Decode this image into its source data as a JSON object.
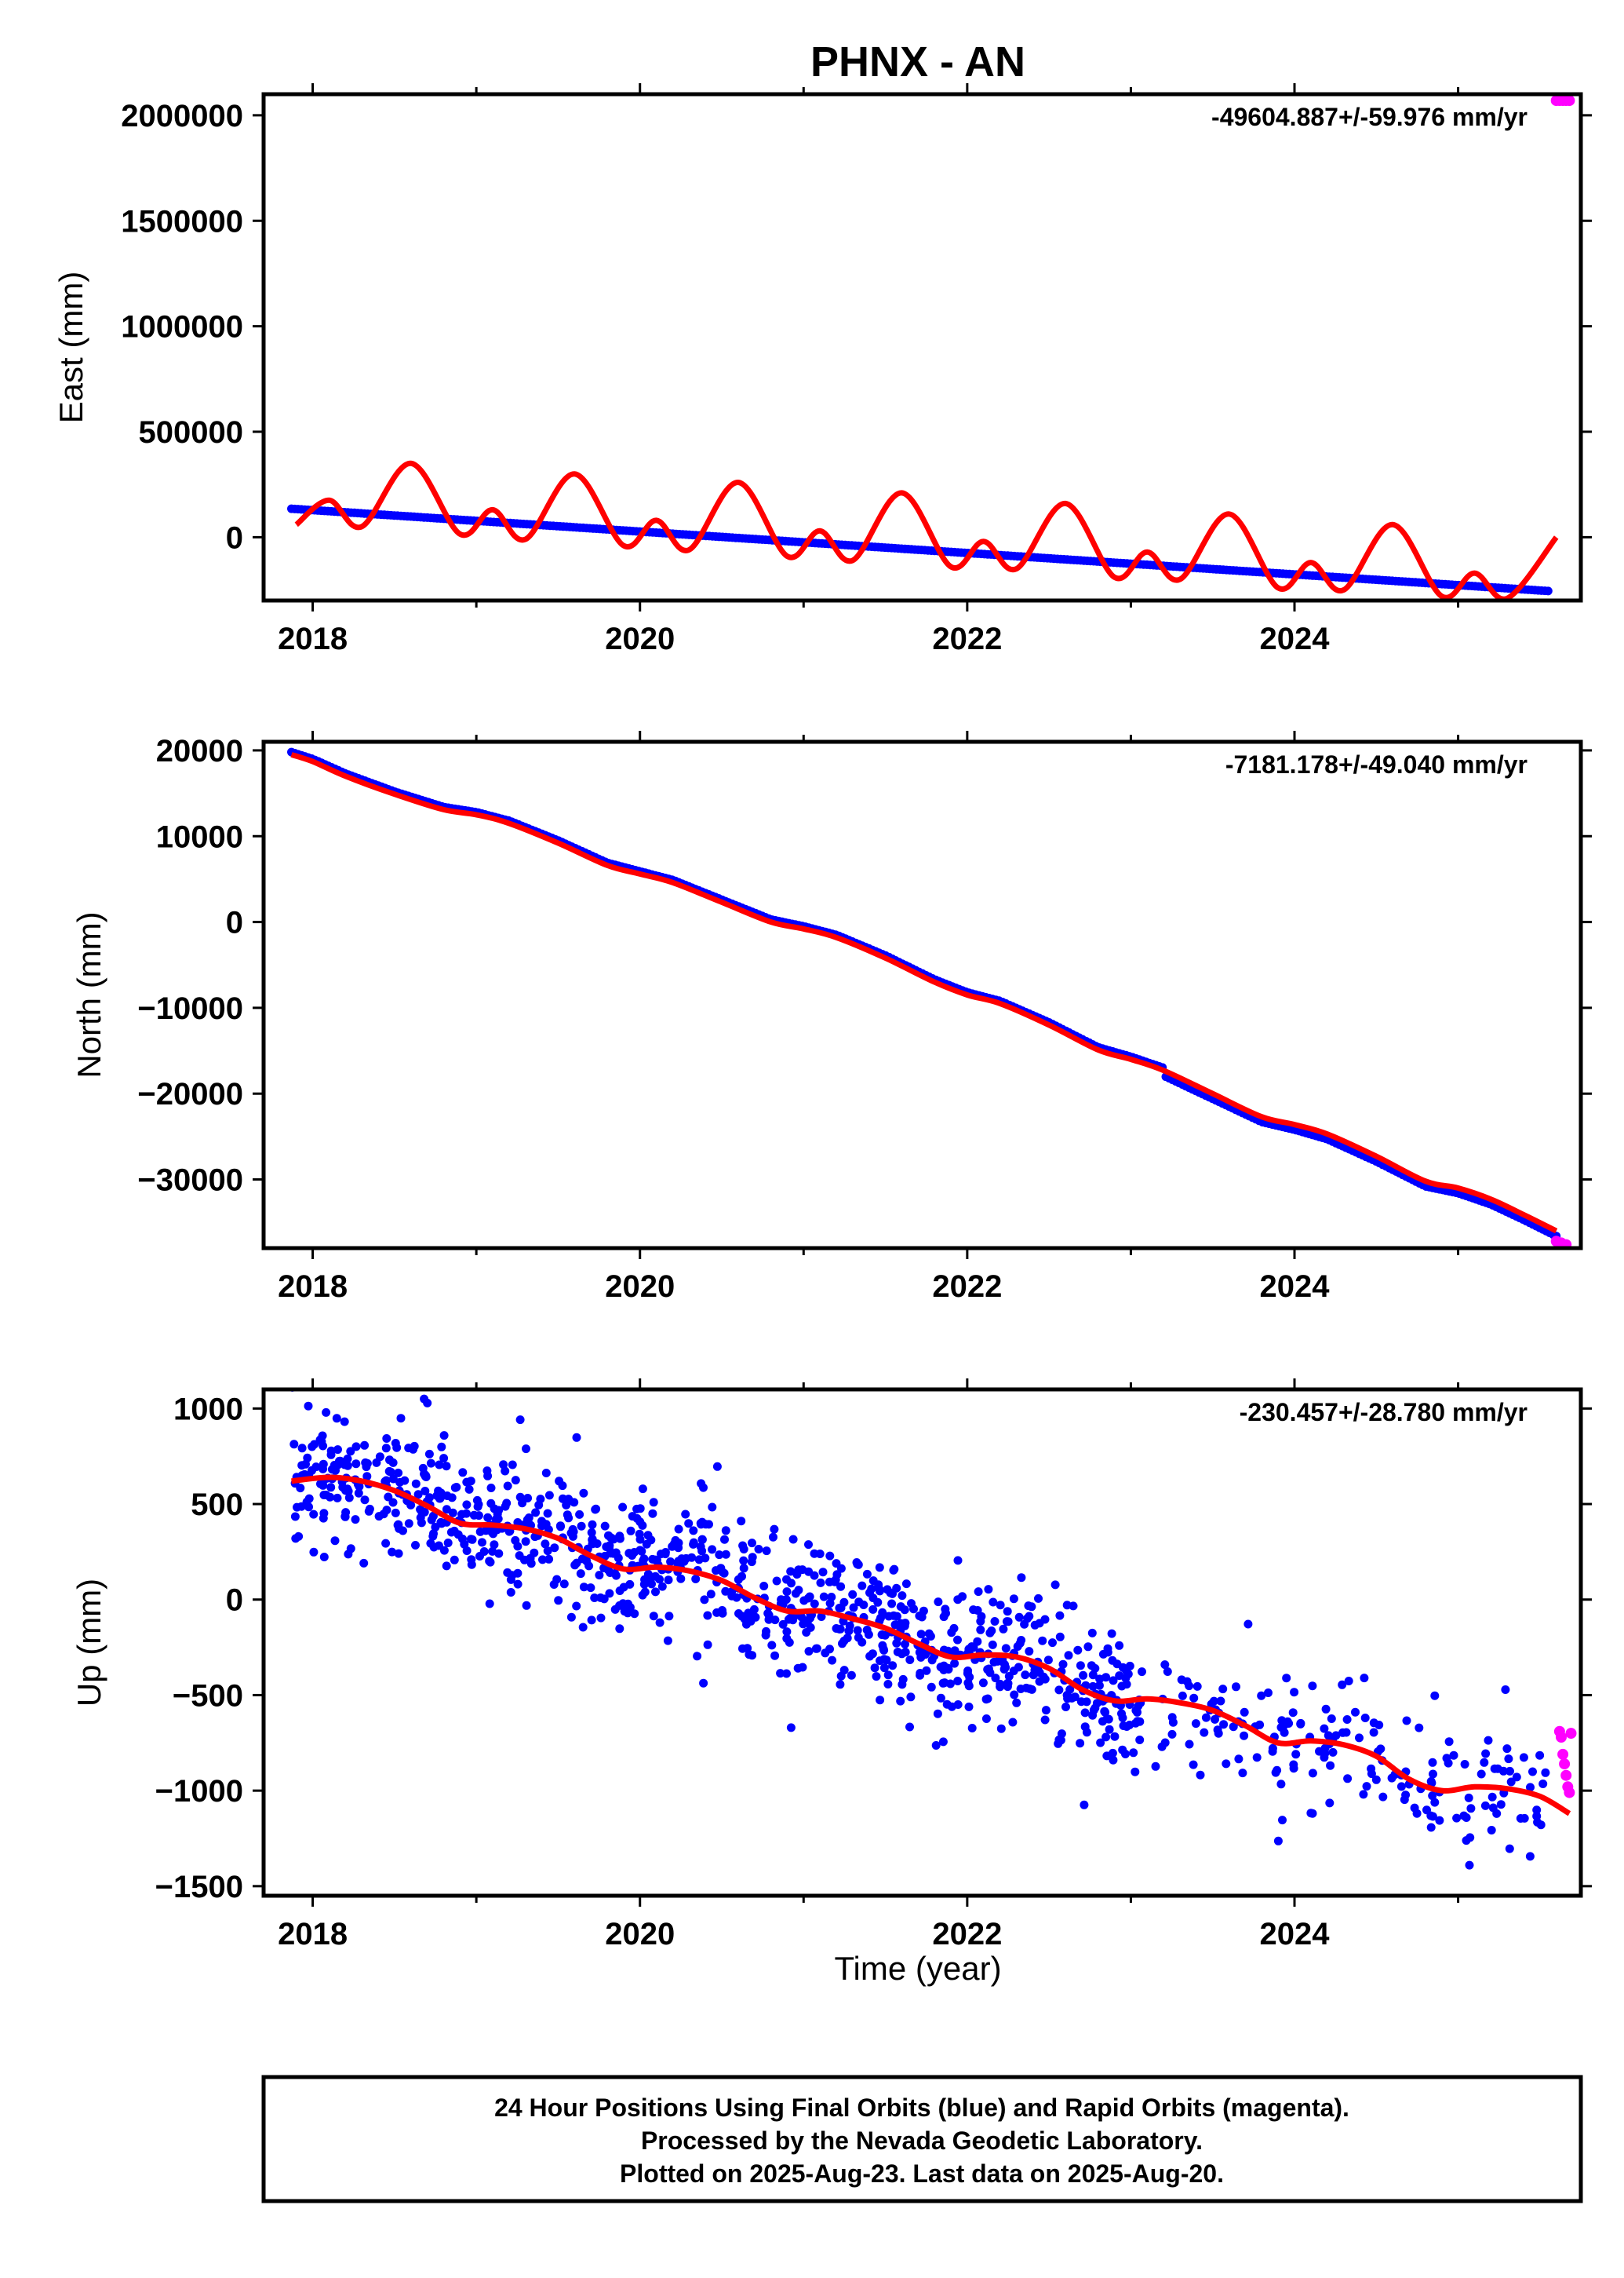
{
  "title": "PHNX - AN",
  "colors": {
    "final_orbits": "#0000ff",
    "rapid_orbits": "#ff00ff",
    "model_fit": "#ff0000",
    "frame": "#000000"
  },
  "x_axis": {
    "label": "Time (year)",
    "range": [
      2017.7,
      2025.75
    ],
    "ticks": [
      2018,
      2020,
      2022,
      2024
    ],
    "tick_labels": [
      "2018",
      "2020",
      "2022",
      "2024"
    ]
  },
  "caption": {
    "line1": "24 Hour Positions Using Final Orbits (blue) and Rapid Orbits (magenta).",
    "line2": "Processed by the Nevada Geodetic Laboratory.",
    "line3": "Plotted on 2025-Aug-23. Last data on 2025-Aug-20."
  },
  "chart_data": [
    {
      "type": "scatter",
      "component": "East",
      "ylabel": "East (mm)",
      "rate_label": "-49604.887+/-59.976 mm/yr",
      "ylim": [
        -300000,
        2100000
      ],
      "yticks": [
        0,
        500000,
        1000000,
        1500000,
        2000000
      ],
      "ytick_labels": [
        "0",
        "500000",
        "1000000",
        "1500000",
        "2000000"
      ],
      "final_orbits": {
        "start": [
          2017.87,
          135000
        ],
        "end": [
          2025.55,
          -255000
        ]
      },
      "rapid_orbits": {
        "x": [
          2025.6,
          2025.62,
          2025.64,
          2025.66,
          2025.68
        ],
        "y": [
          2070000,
          2070000,
          2070000,
          2070000,
          2070000
        ]
      },
      "model_fit": {
        "x": [
          2017.9,
          2018.1,
          2018.3,
          2018.6,
          2018.9,
          2019.1,
          2019.3,
          2019.6,
          2019.9,
          2020.1,
          2020.3,
          2020.6,
          2020.9,
          2021.1,
          2021.3,
          2021.6,
          2021.9,
          2022.1,
          2022.3,
          2022.6,
          2022.9,
          2023.1,
          2023.3,
          2023.6,
          2023.9,
          2024.1,
          2024.3,
          2024.6,
          2024.9,
          2025.1,
          2025.3,
          2025.6
        ],
        "y": [
          60000,
          175000,
          50000,
          350000,
          15000,
          130000,
          -10000,
          300000,
          -40000,
          80000,
          -60000,
          260000,
          -90000,
          30000,
          -110000,
          210000,
          -140000,
          -20000,
          -150000,
          160000,
          -190000,
          -70000,
          -200000,
          110000,
          -240000,
          -120000,
          -250000,
          60000,
          -280000,
          -170000,
          -290000,
          0
        ]
      }
    },
    {
      "type": "scatter",
      "component": "North",
      "ylabel": "North (mm)",
      "rate_label": "-7181.178+/-49.040 mm/yr",
      "ylim": [
        -38000,
        21000
      ],
      "yticks": [
        -30000,
        -20000,
        -10000,
        0,
        10000,
        20000
      ],
      "ytick_labels": [
        "−30000",
        "−20000",
        "−10000",
        "0",
        "10000",
        "20000"
      ],
      "final_orbits": {
        "start": [
          2017.87,
          19800
        ],
        "end": [
          2025.6,
          -37500
        ]
      },
      "rapid_orbits": {
        "x": [
          2025.6,
          2025.63,
          2025.66
        ],
        "y": [
          -37200,
          -37400,
          -37600
        ]
      },
      "model_fit": {
        "x": [
          2017.87,
          2018.0,
          2018.2,
          2018.5,
          2018.8,
          2019.0,
          2019.2,
          2019.5,
          2019.8,
          2020.0,
          2020.2,
          2020.5,
          2020.8,
          2021.0,
          2021.2,
          2021.5,
          2021.8,
          2022.0,
          2022.2,
          2022.5,
          2022.8,
          2023.0,
          2023.2,
          2023.5,
          2023.8,
          2024.0,
          2024.2,
          2024.5,
          2024.8,
          2025.0,
          2025.2,
          2025.4,
          2025.6
        ],
        "y": [
          19500,
          18700,
          17000,
          14900,
          13100,
          12500,
          11500,
          9200,
          6600,
          5600,
          4600,
          2300,
          0,
          -800,
          -1800,
          -4200,
          -7000,
          -8500,
          -9500,
          -12000,
          -14900,
          -16000,
          -17300,
          -20000,
          -22700,
          -23600,
          -24700,
          -27300,
          -30200,
          -31000,
          -32300,
          -34100,
          -36000
        ]
      }
    },
    {
      "type": "scatter",
      "component": "Up",
      "ylabel": "Up (mm)",
      "rate_label": "-230.457+/-28.780 mm/yr",
      "ylim": [
        -1550,
        1100
      ],
      "yticks": [
        -1500,
        -1000,
        -500,
        0,
        500,
        1000
      ],
      "ytick_labels": [
        "−1500",
        "−1000",
        "−500",
        "0",
        "500",
        "1000"
      ],
      "final_orbits": {
        "start": [
          2017.87,
          700
        ],
        "end": [
          2025.55,
          -1050
        ],
        "scatter_sd": 180
      },
      "rapid_orbits": {
        "x": [
          2025.62,
          2025.63,
          2025.64,
          2025.65,
          2025.66,
          2025.67,
          2025.68,
          2025.69
        ],
        "y": [
          -690,
          -720,
          -810,
          -860,
          -920,
          -980,
          -1010,
          -700
        ]
      },
      "model_fit": {
        "x": [
          2017.87,
          2018.1,
          2018.3,
          2018.5,
          2018.7,
          2018.9,
          2019.1,
          2019.3,
          2019.5,
          2019.7,
          2019.9,
          2020.1,
          2020.3,
          2020.5,
          2020.7,
          2020.9,
          2021.1,
          2021.3,
          2021.5,
          2021.7,
          2021.9,
          2022.1,
          2022.3,
          2022.5,
          2022.7,
          2022.9,
          2023.1,
          2023.3,
          2023.5,
          2023.7,
          2023.9,
          2024.1,
          2024.3,
          2024.5,
          2024.7,
          2024.9,
          2025.1,
          2025.3,
          2025.5,
          2025.68
        ],
        "y": [
          620,
          640,
          620,
          570,
          490,
          400,
          390,
          370,
          320,
          230,
          160,
          170,
          150,
          100,
          10,
          -60,
          -60,
          -100,
          -150,
          -230,
          -300,
          -290,
          -300,
          -360,
          -470,
          -530,
          -520,
          -540,
          -580,
          -660,
          -750,
          -740,
          -760,
          -820,
          -940,
          -1000,
          -980,
          -990,
          -1030,
          -1120
        ]
      }
    }
  ]
}
